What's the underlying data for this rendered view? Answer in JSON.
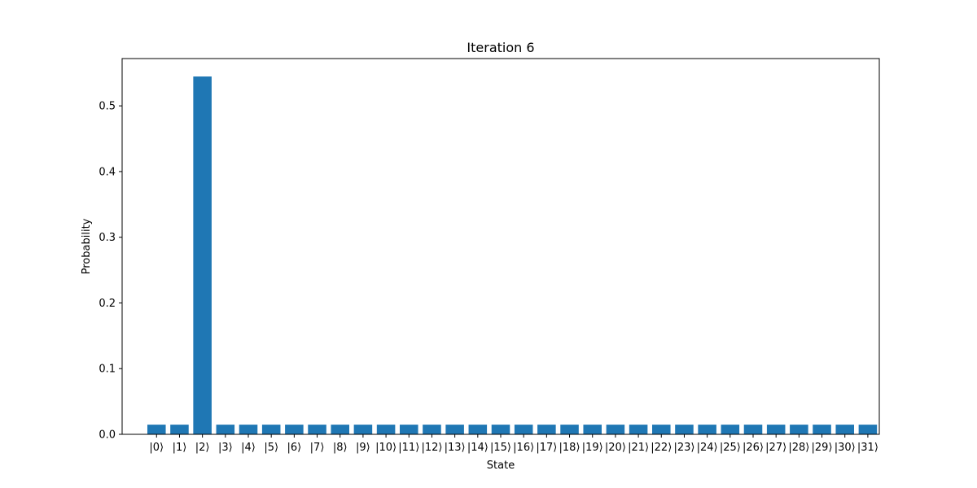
{
  "chart_data": {
    "type": "bar",
    "title": "Iteration 6",
    "xlabel": "State",
    "ylabel": "Probability",
    "categories": [
      "|0⟩",
      "|1⟩",
      "|2⟩",
      "|3⟩",
      "|4⟩",
      "|5⟩",
      "|6⟩",
      "|7⟩",
      "|8⟩",
      "|9⟩",
      "|10⟩",
      "|11⟩",
      "|12⟩",
      "|13⟩",
      "|14⟩",
      "|15⟩",
      "|16⟩",
      "|17⟩",
      "|18⟩",
      "|19⟩",
      "|20⟩",
      "|21⟩",
      "|22⟩",
      "|23⟩",
      "|24⟩",
      "|25⟩",
      "|26⟩",
      "|27⟩",
      "|28⟩",
      "|29⟩",
      "|30⟩",
      "|31⟩"
    ],
    "values": [
      0.0147,
      0.0147,
      0.5447,
      0.0147,
      0.0147,
      0.0147,
      0.0147,
      0.0147,
      0.0147,
      0.0147,
      0.0147,
      0.0147,
      0.0147,
      0.0147,
      0.0147,
      0.0147,
      0.0147,
      0.0147,
      0.0147,
      0.0147,
      0.0147,
      0.0147,
      0.0147,
      0.0147,
      0.0147,
      0.0147,
      0.0147,
      0.0147,
      0.0147,
      0.0147,
      0.0147,
      0.0147
    ],
    "ylim": [
      0,
      0.572
    ],
    "yticks": [
      0.0,
      0.1,
      0.2,
      0.3,
      0.4,
      0.5
    ],
    "ytick_labels": [
      "0.0",
      "0.1",
      "0.2",
      "0.3",
      "0.4",
      "0.5"
    ],
    "grid": false,
    "bar_color": "#1f77b4"
  }
}
